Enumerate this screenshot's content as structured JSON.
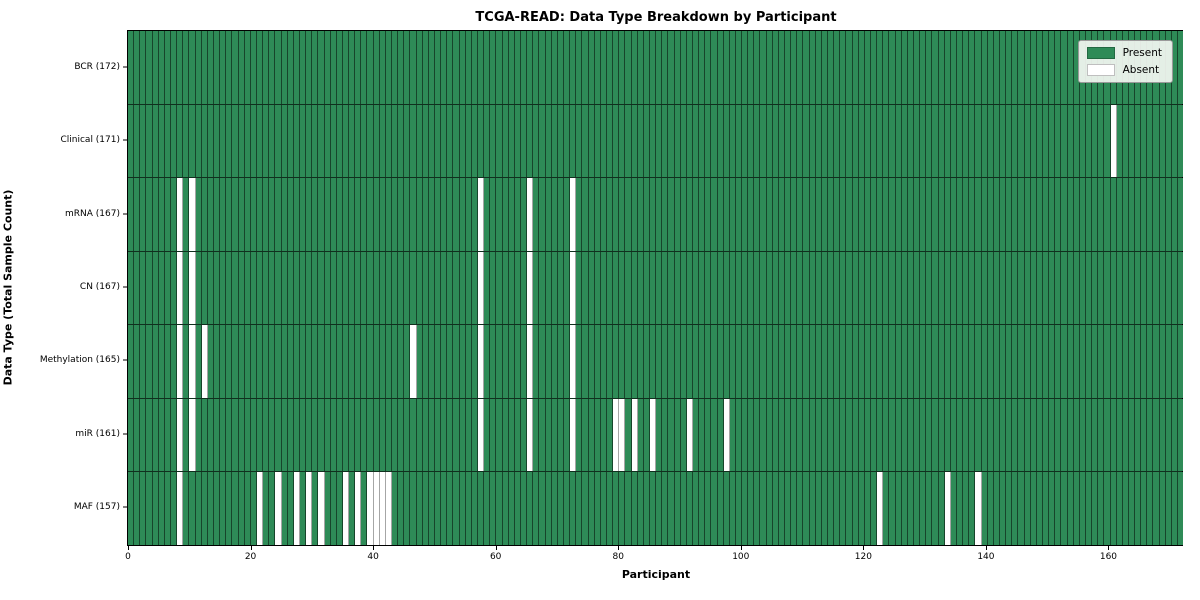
{
  "chart_data": {
    "type": "heatmap",
    "title": "TCGA-READ: Data Type Breakdown by Participant",
    "xlabel": "Participant",
    "ylabel": "Data Type (Total Sample Count)",
    "n_participants": 172,
    "x_ticks": [
      0,
      20,
      40,
      60,
      80,
      100,
      120,
      140,
      160
    ],
    "grid": "cell-borders-on",
    "legend_position": "upper-right",
    "legend": [
      {
        "label": "Present",
        "color": "#2e8b57"
      },
      {
        "label": "Absent",
        "color": "#ffffff"
      }
    ],
    "rows": [
      {
        "label": "BCR (172)",
        "data_type": "BCR",
        "total": 172,
        "absent_participants": []
      },
      {
        "label": "Clinical (171)",
        "data_type": "Clinical",
        "total": 171,
        "absent_participants": [
          160
        ]
      },
      {
        "label": "mRNA (167)",
        "data_type": "mRNA",
        "total": 167,
        "absent_participants": [
          8,
          10,
          57,
          65,
          72
        ]
      },
      {
        "label": "CN (167)",
        "data_type": "CN",
        "total": 167,
        "absent_participants": [
          8,
          10,
          57,
          65,
          72
        ]
      },
      {
        "label": "Methylation (165)",
        "data_type": "Methylation",
        "total": 165,
        "absent_participants": [
          8,
          10,
          12,
          46,
          57,
          65,
          72
        ]
      },
      {
        "label": "miR (161)",
        "data_type": "miR",
        "total": 161,
        "absent_participants": [
          8,
          10,
          57,
          65,
          72,
          79,
          80,
          82,
          85,
          91,
          97
        ]
      },
      {
        "label": "MAF (157)",
        "data_type": "MAF",
        "total": 157,
        "absent_participants": [
          8,
          21,
          24,
          27,
          29,
          31,
          35,
          37,
          39,
          40,
          41,
          42,
          122,
          133,
          138
        ]
      }
    ]
  }
}
